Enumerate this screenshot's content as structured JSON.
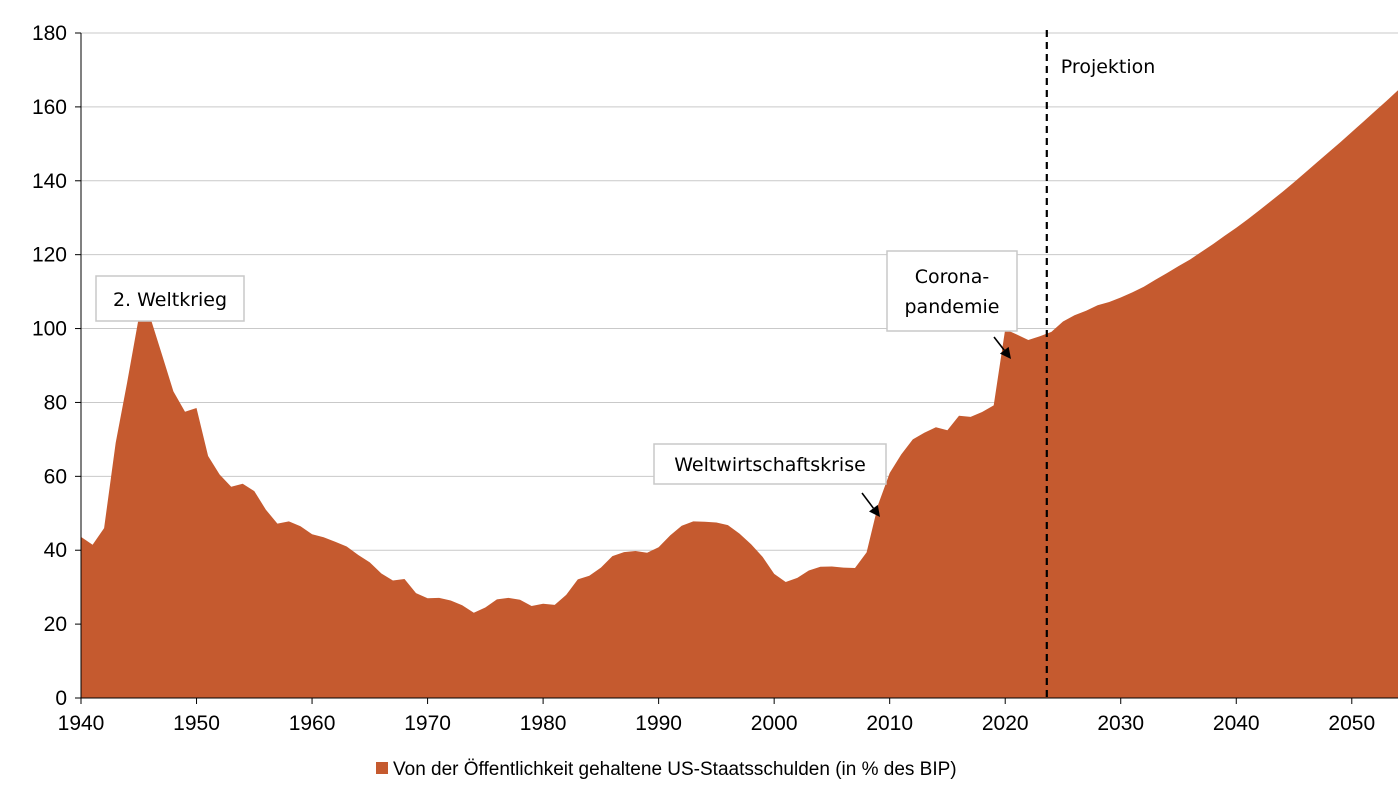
{
  "chart_data": {
    "type": "area",
    "title": "",
    "xlabel": "",
    "ylabel": "",
    "xlim": [
      1940,
      2054
    ],
    "ylim": [
      0,
      180
    ],
    "grid": true,
    "legend_position": "bottom",
    "x_ticks": [
      "1940",
      "1950",
      "1960",
      "1970",
      "1980",
      "1990",
      "2000",
      "2010",
      "2020",
      "2030",
      "2040",
      "2050"
    ],
    "x_tick_values": [
      1940,
      1950,
      1960,
      1970,
      1980,
      1990,
      2000,
      2010,
      2020,
      2030,
      2040,
      2050
    ],
    "y_ticks": [
      "0",
      "20",
      "40",
      "60",
      "80",
      "100",
      "120",
      "140",
      "160",
      "180"
    ],
    "y_tick_values": [
      0,
      20,
      40,
      60,
      80,
      100,
      120,
      140,
      160,
      180
    ],
    "projection_start": 2023.6,
    "series": [
      {
        "name": "Von der Öffentlichkeit gehaltene US-Staatsschulden (in % des BIP)",
        "color": "#c55a2f",
        "x": [
          1940,
          1941,
          1942,
          1943,
          1944,
          1945,
          1946,
          1947,
          1948,
          1949,
          1950,
          1951,
          1952,
          1953,
          1954,
          1955,
          1956,
          1957,
          1958,
          1959,
          1960,
          1961,
          1962,
          1963,
          1964,
          1965,
          1966,
          1967,
          1968,
          1969,
          1970,
          1971,
          1972,
          1973,
          1974,
          1975,
          1976,
          1977,
          1978,
          1979,
          1980,
          1981,
          1982,
          1983,
          1984,
          1985,
          1986,
          1987,
          1988,
          1989,
          1990,
          1991,
          1992,
          1993,
          1994,
          1995,
          1996,
          1997,
          1998,
          1999,
          2000,
          2001,
          2002,
          2003,
          2004,
          2005,
          2006,
          2007,
          2008,
          2009,
          2010,
          2011,
          2012,
          2013,
          2014,
          2015,
          2016,
          2017,
          2018,
          2019,
          2020,
          2021,
          2022,
          2023,
          2024,
          2025,
          2026,
          2027,
          2028,
          2029,
          2030,
          2031,
          2032,
          2033,
          2034,
          2035,
          2036,
          2037,
          2038,
          2039,
          2040,
          2041,
          2042,
          2043,
          2044,
          2045,
          2046,
          2047,
          2048,
          2049,
          2050,
          2051,
          2052,
          2053,
          2054
        ],
        "values": [
          43.6,
          41.5,
          46.0,
          69.1,
          85.5,
          103.0,
          103.0,
          93.0,
          83.0,
          77.5,
          78.5,
          65.5,
          60.5,
          57.2,
          58.0,
          56.0,
          51.0,
          47.2,
          47.8,
          46.5,
          44.3,
          43.5,
          42.3,
          41.0,
          38.7,
          36.7,
          33.7,
          31.8,
          32.2,
          28.4,
          27.0,
          27.1,
          26.4,
          25.1,
          23.1,
          24.5,
          26.7,
          27.1,
          26.6,
          24.9,
          25.5,
          25.2,
          27.9,
          32.1,
          33.1,
          35.3,
          38.4,
          39.5,
          39.8,
          39.3,
          40.8,
          44.0,
          46.6,
          47.8,
          47.7,
          47.5,
          46.8,
          44.5,
          41.6,
          38.2,
          33.6,
          31.4,
          32.5,
          34.5,
          35.5,
          35.6,
          35.3,
          35.2,
          39.4,
          52.3,
          60.9,
          65.9,
          70.0,
          71.8,
          73.3,
          72.5,
          76.4,
          76.1,
          77.4,
          79.2,
          99.8,
          98.4,
          96.9,
          97.9,
          99.1,
          101.9,
          103.6,
          104.8,
          106.3,
          107.2,
          108.4,
          109.8,
          111.3,
          113.2,
          115.0,
          116.9,
          118.7,
          120.8,
          122.9,
          125.1,
          127.3,
          129.6,
          132.0,
          134.5,
          137.0,
          139.6,
          142.3,
          145.0,
          147.7,
          150.4,
          153.2,
          156.0,
          158.8,
          161.6,
          164.5
        ]
      }
    ],
    "annotations": [
      {
        "lines": [
          "2. Weltkrieg"
        ]
      },
      {
        "lines": [
          "Weltwirtschaftskrise"
        ]
      },
      {
        "lines": [
          "Corona-",
          "pandemie"
        ]
      },
      {
        "lines": [
          "Projektion"
        ]
      }
    ]
  }
}
